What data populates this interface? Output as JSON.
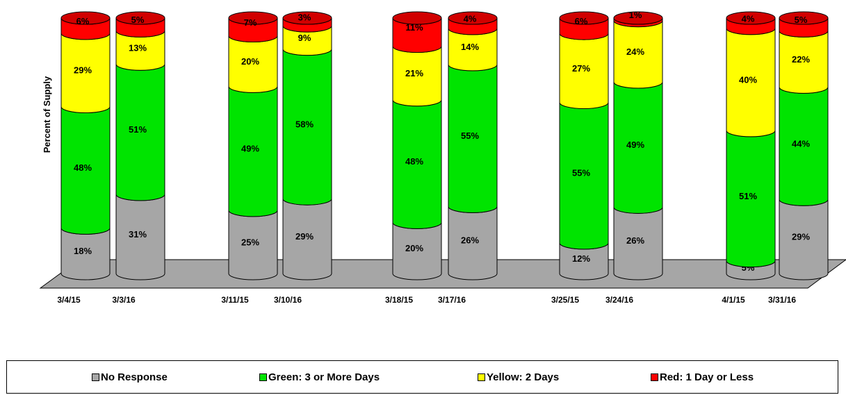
{
  "chart_data": {
    "type": "bar",
    "stacked": true,
    "three_d": true,
    "ylabel": "Percent of Supply",
    "xlabel": "",
    "title": "",
    "ylim": [
      0,
      100
    ],
    "legend_position": "bottom",
    "categories": [
      "3/4/15",
      "3/3/16",
      "3/11/15",
      "3/10/16",
      "3/18/15",
      "3/17/16",
      "3/25/15",
      "3/24/16",
      "4/1/15",
      "3/31/16"
    ],
    "series": [
      {
        "name": "No Response",
        "color": "#a6a6a6",
        "values": [
          18,
          31,
          25,
          29,
          20,
          26,
          12,
          26,
          5,
          29
        ]
      },
      {
        "name": "Green: 3 or More Days",
        "color": "#00e400",
        "values": [
          48,
          51,
          49,
          58,
          48,
          55,
          55,
          49,
          51,
          44
        ]
      },
      {
        "name": "Yellow: 2 Days",
        "color": "#ffff00",
        "values": [
          29,
          13,
          20,
          9,
          21,
          14,
          27,
          24,
          40,
          22
        ]
      },
      {
        "name": "Red: 1 Day or Less",
        "color": "#ff0000",
        "values": [
          6,
          5,
          7,
          3,
          11,
          4,
          6,
          1,
          4,
          5
        ]
      }
    ],
    "labels": [
      [
        "18%",
        "48%",
        "29%",
        "6%"
      ],
      [
        "31%",
        "51%",
        "13%",
        "5%"
      ],
      [
        "25%",
        "49%",
        "20%",
        "7%"
      ],
      [
        "29%",
        "58%",
        "9%",
        "3%"
      ],
      [
        "20%",
        "48%",
        "21%",
        "11%"
      ],
      [
        "26%",
        "55%",
        "14%",
        "4%"
      ],
      [
        "12%",
        "55%",
        "27%",
        "6%"
      ],
      [
        "26%",
        "49%",
        "24%",
        "1%"
      ],
      [
        "5%",
        "51%",
        "40%",
        "4%"
      ],
      [
        "29%",
        "44%",
        "22%",
        "5%"
      ]
    ]
  },
  "legend": {
    "items": [
      "No Response",
      "Green: 3 or More Days",
      "Yellow: 2 Days",
      "Red: 1 Day or Less"
    ]
  }
}
